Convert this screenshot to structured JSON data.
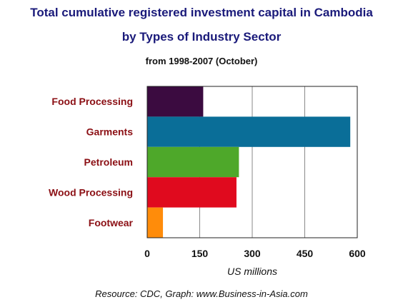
{
  "title_line1": "Total cumulative registered investment capital in Cambodia",
  "title_line2": "by Types of Industry Sector",
  "subtitle": "from  1998-2007 (October)",
  "source": "Resource: CDC, Graph: www.Business-in-Asia.com",
  "chart_data": {
    "type": "bar",
    "orientation": "horizontal",
    "categories": [
      "Food Processing",
      "Garments",
      "Petroleum",
      "Wood Processing",
      "Footwear"
    ],
    "values": [
      160,
      580,
      262,
      255,
      45
    ],
    "colors": [
      "#3b0b40",
      "#0a6e98",
      "#4ea82a",
      "#e00a1e",
      "#ff8c0a"
    ],
    "xlabel": "US millions",
    "ylabel": "",
    "xlim": [
      0,
      600
    ],
    "xticks": [
      0,
      150,
      300,
      450,
      600
    ],
    "grid": "vertical",
    "legend": "none"
  }
}
